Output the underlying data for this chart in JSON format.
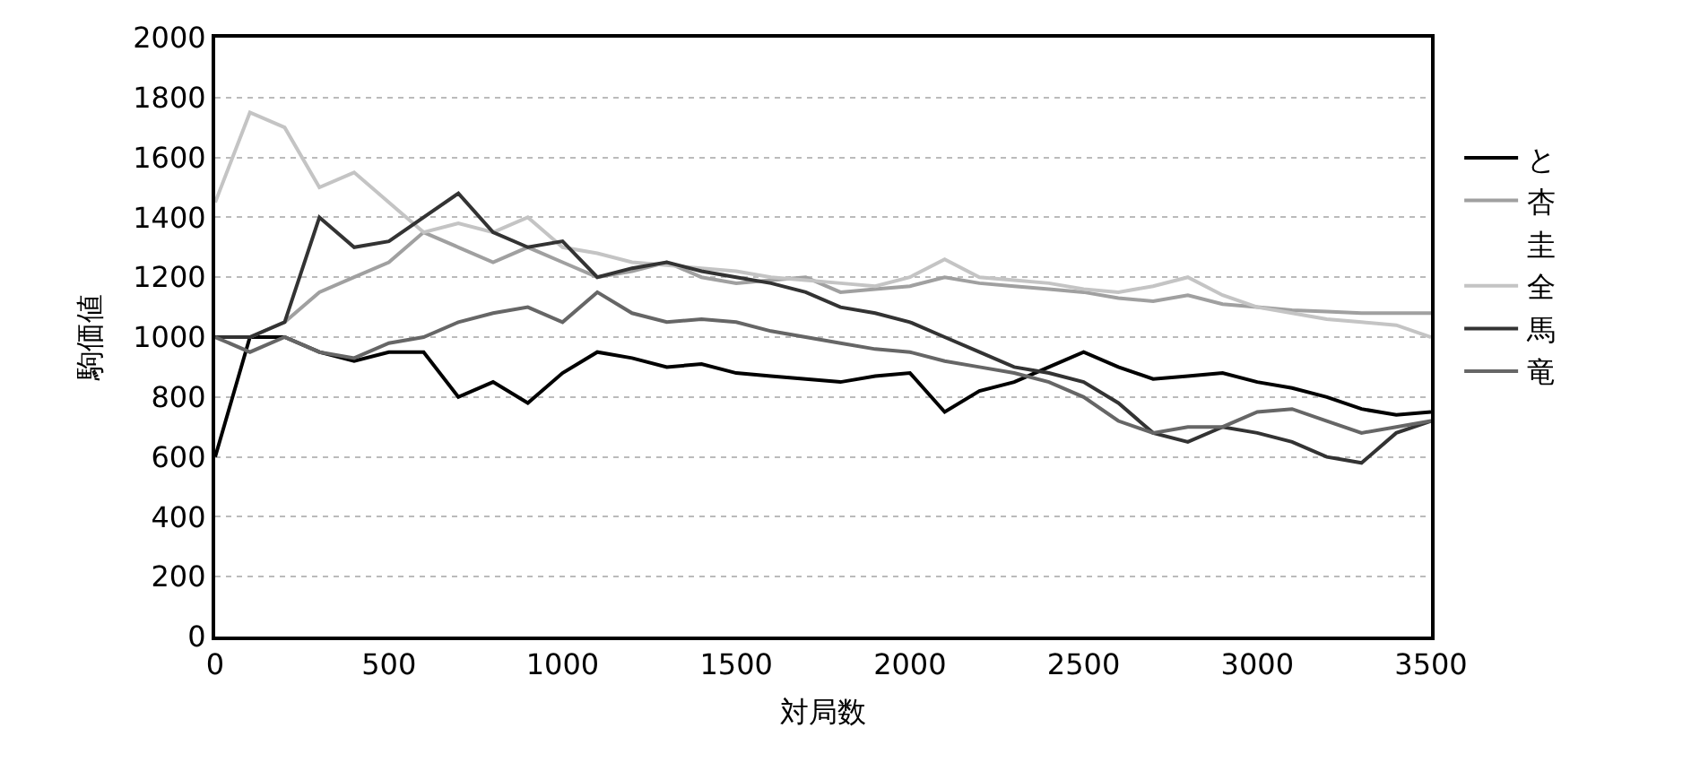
{
  "chart_data": {
    "type": "line",
    "xlabel": "対局数",
    "ylabel": "駒価値",
    "x": [
      0,
      100,
      200,
      300,
      400,
      500,
      600,
      700,
      800,
      900,
      1000,
      1100,
      1200,
      1300,
      1400,
      1500,
      1600,
      1700,
      1800,
      1900,
      2000,
      2100,
      2200,
      2300,
      2400,
      2500,
      2600,
      2700,
      2800,
      2900,
      3000,
      3100,
      3200,
      3300,
      3400,
      3500
    ],
    "series": [
      {
        "name": "と",
        "color": "#000000",
        "values": [
          600,
          1000,
          1000,
          950,
          920,
          950,
          950,
          800,
          850,
          780,
          880,
          950,
          930,
          900,
          910,
          880,
          870,
          860,
          850,
          870,
          880,
          750,
          820,
          850,
          900,
          950,
          900,
          860,
          870,
          880,
          850,
          830,
          800,
          760,
          740,
          750
        ]
      },
      {
        "name": "杏",
        "color": "#a0a0a0",
        "values": [
          1000,
          1000,
          1050,
          1150,
          1200,
          1250,
          1350,
          1300,
          1250,
          1300,
          1250,
          1200,
          1220,
          1250,
          1200,
          1180,
          1190,
          1200,
          1150,
          1160,
          1170,
          1200,
          1180,
          1170,
          1160,
          1150,
          1130,
          1120,
          1140,
          1110,
          1100,
          1090,
          1085,
          1080,
          1080,
          1080
        ]
      },
      {
        "name": "圭",
        "values": [
          null,
          null,
          null,
          null,
          null,
          null,
          null,
          null,
          null,
          null,
          null,
          null,
          null,
          null,
          null,
          null,
          null,
          null,
          null,
          null,
          null,
          null,
          null,
          null,
          null,
          null,
          null,
          null,
          null,
          null,
          null,
          null,
          null,
          null,
          null,
          null
        ]
      },
      {
        "name": "全",
        "color": "#c4c4c4",
        "values": [
          1450,
          1750,
          1700,
          1500,
          1550,
          1450,
          1350,
          1380,
          1350,
          1400,
          1300,
          1280,
          1250,
          1240,
          1230,
          1220,
          1200,
          1190,
          1180,
          1170,
          1200,
          1260,
          1200,
          1190,
          1180,
          1160,
          1150,
          1170,
          1200,
          1140,
          1100,
          1080,
          1060,
          1050,
          1040,
          1000
        ]
      },
      {
        "name": "馬",
        "color": "#333333",
        "values": [
          1000,
          1000,
          1050,
          1400,
          1300,
          1320,
          1400,
          1480,
          1350,
          1300,
          1320,
          1200,
          1230,
          1250,
          1220,
          1200,
          1180,
          1150,
          1100,
          1080,
          1050,
          1000,
          950,
          900,
          880,
          850,
          780,
          680,
          650,
          700,
          680,
          650,
          600,
          580,
          680,
          720
        ]
      },
      {
        "name": "竜",
        "color": "#666666",
        "values": [
          1000,
          950,
          1000,
          950,
          930,
          980,
          1000,
          1050,
          1080,
          1100,
          1050,
          1150,
          1080,
          1050,
          1060,
          1050,
          1020,
          1000,
          980,
          960,
          950,
          920,
          900,
          880,
          850,
          800,
          720,
          680,
          700,
          700,
          750,
          760,
          720,
          680,
          700,
          720
        ]
      }
    ],
    "xlim": [
      0,
      3500
    ],
    "xticks": [
      0,
      500,
      1000,
      1500,
      2000,
      2500,
      3000,
      3500
    ],
    "ylim": [
      0,
      2000
    ],
    "yticks": [
      0,
      200,
      400,
      600,
      800,
      1000,
      1200,
      1400,
      1600,
      1800,
      2000
    ],
    "grid": "y",
    "legend": "right",
    "marker": "none",
    "line_style": "solid"
  }
}
